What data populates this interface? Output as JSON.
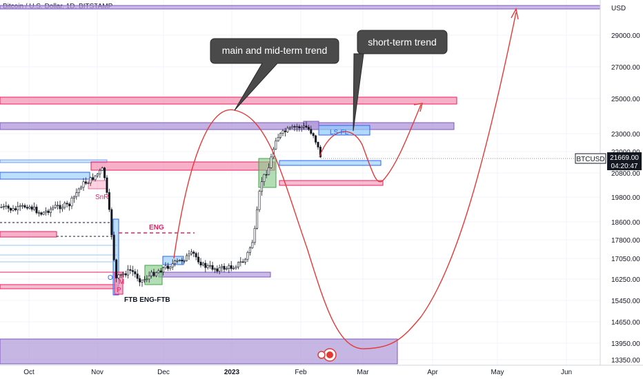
{
  "header": {
    "title": "Bitcoin / U.S. Dollar, 1D, BITSTAMP"
  },
  "price_scale": {
    "currency": "USD",
    "symbol": "BTCUSD",
    "last_price": "21669.00",
    "countdown": "04:20:47"
  },
  "annotations": {
    "callout_main": "main and mid-term trend",
    "callout_short": "short-term trend",
    "snr": "SnR",
    "eng": "ENG",
    "ftb_eng_ftb": "FTB ENG-FTB",
    "ls_fl": "LS-FL",
    "o_label": "O",
    "m_label": "M",
    "p_label": "P"
  },
  "colors": {
    "up": "#131722",
    "down": "#131722",
    "pink_zone": "#f48fb1",
    "purple_zone": "#b39ddb",
    "blue_zone": "#90caf9",
    "green_zone": "#81c784",
    "projection": "#e53935"
  },
  "chart_data": {
    "type": "candlestick",
    "title": "Bitcoin / U.S. Dollar, 1D, BITSTAMP",
    "y_ticks": [
      "29000.00",
      "27000.00",
      "25000.00",
      "23000.00",
      "22000.00",
      "20800.00",
      "19800.00",
      "18600.00",
      "17800.00",
      "17050.00",
      "16250.00",
      "15450.00",
      "14650.00",
      "13950.00",
      "13350.00"
    ],
    "x_ticks": [
      "Oct",
      "Nov",
      "Dec",
      "2023",
      "Feb",
      "Mar",
      "Apr",
      "May",
      "Jun"
    ],
    "last_close": 21669,
    "price_path": [
      {
        "date": "Sep 19",
        "close": 19500
      },
      {
        "date": "Sep 26",
        "close": 19300
      },
      {
        "date": "Oct 3",
        "close": 19500
      },
      {
        "date": "Oct 10",
        "close": 19100
      },
      {
        "date": "Oct 17",
        "close": 19200
      },
      {
        "date": "Oct 24",
        "close": 20000
      },
      {
        "date": "Oct 31",
        "close": 20700
      },
      {
        "date": "Nov 7",
        "close": 17100
      },
      {
        "date": "Nov 9",
        "close": 15900
      },
      {
        "date": "Nov 14",
        "close": 16800
      },
      {
        "date": "Nov 21",
        "close": 16200
      },
      {
        "date": "Nov 28",
        "close": 16900
      },
      {
        "date": "Dec 5",
        "close": 17100
      },
      {
        "date": "Dec 14",
        "close": 17800
      },
      {
        "date": "Dec 19",
        "close": 16800
      },
      {
        "date": "Dec 26",
        "close": 16700
      },
      {
        "date": "Jan 2",
        "close": 16700
      },
      {
        "date": "Jan 9",
        "close": 17900
      },
      {
        "date": "Jan 14",
        "close": 20900
      },
      {
        "date": "Jan 21",
        "close": 22700
      },
      {
        "date": "Jan 28",
        "close": 23000
      },
      {
        "date": "Feb 4",
        "close": 23300
      },
      {
        "date": "Feb 8",
        "close": 22900
      },
      {
        "date": "Feb 11",
        "close": 21669
      }
    ],
    "projections": [
      {
        "name": "main and mid-term trend",
        "path": [
          [
            "Dec 15",
            17300
          ],
          [
            "Jan 2",
            24200
          ],
          [
            "Feb 20",
            18500
          ],
          [
            "Mar 10",
            13600
          ],
          [
            "May 5",
            29500
          ]
        ]
      },
      {
        "name": "short-term trend",
        "path": [
          [
            "Feb 9",
            22000
          ],
          [
            "Feb 20",
            23000
          ],
          [
            "Mar 3",
            20900
          ],
          [
            "Mar 28",
            24600
          ]
        ]
      }
    ],
    "zones": [
      {
        "color": "pink",
        "from": 24800,
        "to": 25100
      },
      {
        "color": "purple",
        "from": 23200,
        "to": 23500
      },
      {
        "color": "purple",
        "from": 29900,
        "to": 30050
      },
      {
        "color": "pink",
        "from": 21000,
        "to": 21200
      },
      {
        "color": "blue",
        "from": 21300,
        "to": 21400
      },
      {
        "color": "purple",
        "from": 13350,
        "to": 13800
      }
    ]
  }
}
